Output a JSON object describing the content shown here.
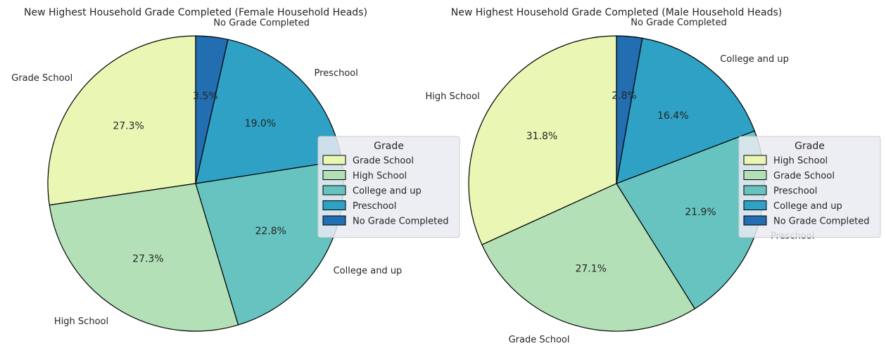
{
  "chart_data": [
    {
      "type": "pie",
      "title": "New Highest Household Grade Completed (Female Household Heads)",
      "legend_title": "Grade",
      "legend_position": "center-right",
      "start_angle_deg": 90,
      "direction": "counterclockwise",
      "slices": [
        {
          "label": "Grade School",
          "value": 27.3,
          "pct_text": "27.3%",
          "color": "#e9f6b4"
        },
        {
          "label": "High School",
          "value": 27.3,
          "pct_text": "27.3%",
          "color": "#b3e0b7"
        },
        {
          "label": "College and up",
          "value": 22.8,
          "pct_text": "22.8%",
          "color": "#66c3bf"
        },
        {
          "label": "Preschool",
          "value": 19.0,
          "pct_text": "19.0%",
          "color": "#2ea1c5"
        },
        {
          "label": "No Grade Completed",
          "value": 3.5,
          "pct_text": "3.5%",
          "color": "#236db1"
        }
      ]
    },
    {
      "type": "pie",
      "title": "New Highest Household Grade Completed (Male Household Heads)",
      "legend_title": "Grade",
      "legend_position": "center-right",
      "start_angle_deg": 90,
      "direction": "counterclockwise",
      "slices": [
        {
          "label": "High School",
          "value": 31.8,
          "pct_text": "31.8%",
          "color": "#e9f6b4"
        },
        {
          "label": "Grade School",
          "value": 27.1,
          "pct_text": "27.1%",
          "color": "#b3e0b7"
        },
        {
          "label": "Preschool",
          "value": 21.9,
          "pct_text": "21.9%",
          "color": "#66c3bf"
        },
        {
          "label": "College and up",
          "value": 16.4,
          "pct_text": "16.4%",
          "color": "#2ea1c5"
        },
        {
          "label": "No Grade Completed",
          "value": 2.8,
          "pct_text": "2.8%",
          "color": "#236db1"
        }
      ]
    }
  ]
}
